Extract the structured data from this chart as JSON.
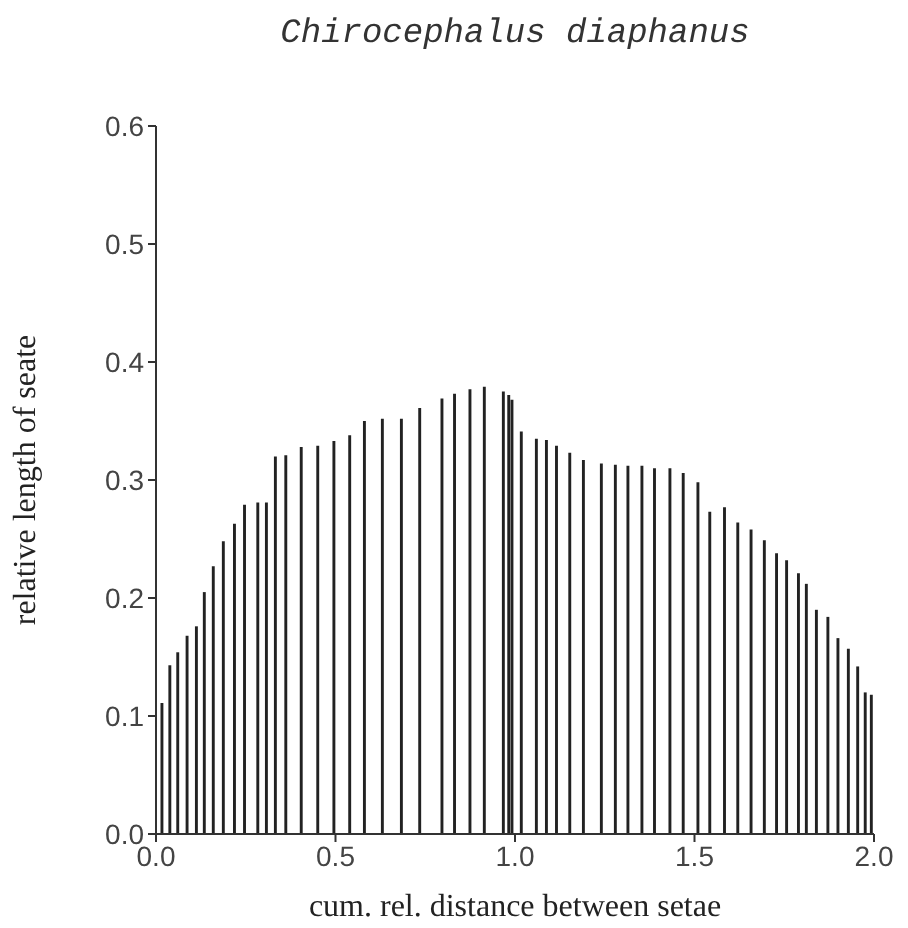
{
  "chart_data": {
    "type": "bar",
    "title": "Chirocephalus diaphanus",
    "xlabel": "cum. rel. distance between setae",
    "ylabel": "relative length of seate",
    "x": [
      0.017,
      0.039,
      0.061,
      0.087,
      0.113,
      0.135,
      0.16,
      0.188,
      0.219,
      0.247,
      0.284,
      0.308,
      0.333,
      0.362,
      0.405,
      0.451,
      0.496,
      0.54,
      0.581,
      0.631,
      0.684,
      0.735,
      0.797,
      0.832,
      0.875,
      0.915,
      0.968,
      0.983,
      0.992,
      1.018,
      1.06,
      1.088,
      1.116,
      1.153,
      1.191,
      1.241,
      1.28,
      1.315,
      1.354,
      1.389,
      1.432,
      1.469,
      1.51,
      1.543,
      1.584,
      1.621,
      1.658,
      1.695,
      1.729,
      1.757,
      1.79,
      1.812,
      1.84,
      1.872,
      1.9,
      1.929,
      1.955,
      1.976,
      1.993
    ],
    "values": [
      0.111,
      0.143,
      0.154,
      0.168,
      0.176,
      0.205,
      0.227,
      0.248,
      0.263,
      0.279,
      0.281,
      0.281,
      0.32,
      0.321,
      0.328,
      0.329,
      0.333,
      0.338,
      0.35,
      0.352,
      0.352,
      0.361,
      0.369,
      0.373,
      0.377,
      0.379,
      0.375,
      0.372,
      0.368,
      0.341,
      0.335,
      0.334,
      0.329,
      0.323,
      0.317,
      0.314,
      0.313,
      0.312,
      0.312,
      0.31,
      0.31,
      0.306,
      0.298,
      0.273,
      0.277,
      0.264,
      0.258,
      0.249,
      0.238,
      0.232,
      0.221,
      0.212,
      0.19,
      0.184,
      0.166,
      0.157,
      0.142,
      0.12,
      0.118
    ],
    "color": "#222222",
    "xlim": [
      0,
      2
    ],
    "xticks": [
      {
        "value": 0,
        "label": "0.0"
      },
      {
        "value": 0.5,
        "label": "0.5"
      },
      {
        "value": 1,
        "label": "1.0"
      },
      {
        "value": 1.5,
        "label": "1.5"
      },
      {
        "value": 2,
        "label": "2.0"
      }
    ],
    "ylim": [
      0,
      0.6
    ],
    "yticks": [
      {
        "value": 0,
        "label": "0.0"
      },
      {
        "value": 0.1,
        "label": "0.1"
      },
      {
        "value": 0.2,
        "label": "0.2"
      },
      {
        "value": 0.3,
        "label": "0.3"
      },
      {
        "value": 0.4,
        "label": "0.4"
      },
      {
        "value": 0.5,
        "label": "0.5"
      },
      {
        "value": 0.6,
        "label": "0.6"
      }
    ],
    "grid": false
  }
}
